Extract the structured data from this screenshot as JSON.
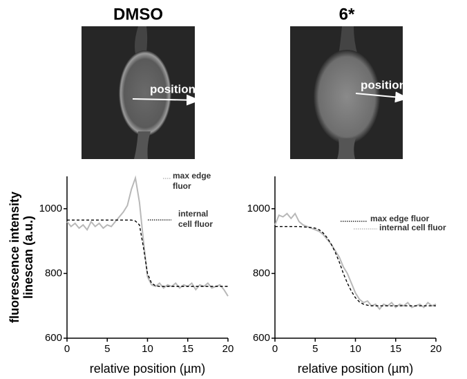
{
  "chart_data": [
    {
      "type": "line",
      "title": "DMSO",
      "image_label": "position",
      "xlabel": "relative position (µm)",
      "ylabel": [
        "fluorescence intensity",
        "linescan (a.u.)"
      ],
      "xlim": [
        0,
        20
      ],
      "ylim": [
        600,
        1100
      ],
      "xticks": [
        0,
        5,
        10,
        15,
        20
      ],
      "yticks": [
        600,
        800,
        1000
      ],
      "x": [
        0,
        0.5,
        1,
        1.5,
        2,
        2.5,
        3,
        3.5,
        4,
        4.5,
        5,
        5.5,
        6,
        6.5,
        7,
        7.5,
        8,
        8.5,
        9,
        9.5,
        10,
        10.5,
        11,
        11.5,
        12,
        12.5,
        13,
        13.5,
        14,
        14.5,
        15,
        15.5,
        16,
        16.5,
        17,
        17.5,
        18,
        18.5,
        19,
        19.5,
        20
      ],
      "series": [
        {
          "color": "#b8b8b8",
          "dashed": false,
          "values": [
            960,
            945,
            955,
            940,
            950,
            935,
            960,
            945,
            955,
            940,
            950,
            945,
            960,
            975,
            990,
            1010,
            1060,
            1095,
            1020,
            900,
            790,
            765,
            760,
            770,
            755,
            765,
            760,
            770,
            755,
            765,
            760,
            770,
            750,
            765,
            760,
            770,
            755,
            760,
            765,
            750,
            730
          ]
        },
        {
          "color": "#000000",
          "dashed": true,
          "values": [
            965,
            965,
            965,
            965,
            965,
            965,
            965,
            965,
            965,
            965,
            965,
            965,
            965,
            965,
            965,
            965,
            965,
            962,
            950,
            880,
            800,
            770,
            762,
            760,
            760,
            760,
            760,
            760,
            760,
            760,
            760,
            760,
            760,
            760,
            760,
            760,
            760,
            760,
            760,
            760,
            760
          ]
        }
      ],
      "annotations": [
        {
          "lines": [
            "max edge",
            "fluor"
          ],
          "color": "#aaaaaa"
        },
        {
          "lines": [
            "internal",
            "cell fluor"
          ],
          "color": "#000000"
        }
      ]
    },
    {
      "type": "line",
      "title": "6*",
      "image_label": "position",
      "xlabel": "relative position (µm)",
      "xlim": [
        0,
        20
      ],
      "ylim": [
        600,
        1100
      ],
      "xticks": [
        0,
        5,
        10,
        15,
        20
      ],
      "yticks": [
        600,
        800,
        1000
      ],
      "x": [
        0,
        0.5,
        1,
        1.5,
        2,
        2.5,
        3,
        3.5,
        4,
        4.5,
        5,
        5.5,
        6,
        6.5,
        7,
        7.5,
        8,
        8.5,
        9,
        9.5,
        10,
        10.5,
        11,
        11.5,
        12,
        12.5,
        13,
        13.5,
        14,
        14.5,
        15,
        15.5,
        16,
        16.5,
        17,
        17.5,
        18,
        18.5,
        19,
        19.5,
        20
      ],
      "series": [
        {
          "color": "#b8b8b8",
          "dashed": false,
          "values": [
            950,
            980,
            975,
            985,
            970,
            985,
            960,
            950,
            945,
            940,
            935,
            930,
            920,
            905,
            890,
            870,
            850,
            820,
            800,
            770,
            740,
            720,
            710,
            715,
            700,
            705,
            690,
            705,
            700,
            710,
            695,
            705,
            700,
            710,
            695,
            700,
            705,
            695,
            710,
            700,
            705
          ]
        },
        {
          "color": "#000000",
          "dashed": true,
          "values": [
            945,
            945,
            945,
            945,
            945,
            945,
            945,
            944,
            943,
            942,
            940,
            935,
            925,
            910,
            890,
            865,
            835,
            800,
            770,
            745,
            725,
            712,
            705,
            702,
            700,
            700,
            700,
            700,
            700,
            700,
            700,
            700,
            700,
            700,
            700,
            700,
            700,
            700,
            700,
            700,
            700
          ]
        }
      ],
      "annotations": [
        {
          "lines": [
            "max edge fluor"
          ],
          "color": "#000000"
        },
        {
          "lines": [
            "internal cell fluor"
          ],
          "color": "#aaaaaa"
        }
      ]
    }
  ]
}
